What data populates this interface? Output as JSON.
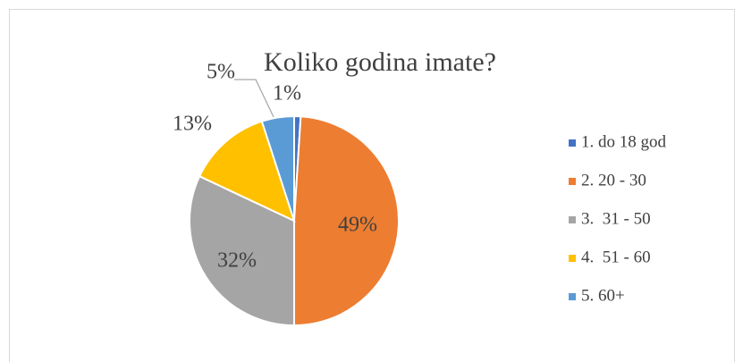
{
  "chart_data": {
    "type": "pie",
    "title": "Koliko godina imate?",
    "categories": [
      "1. do 18 god",
      "2. 20 - 30",
      "3.  31 - 50",
      "4.  51 - 60",
      "5. 60+"
    ],
    "values": [
      1,
      49,
      32,
      13,
      5
    ],
    "value_labels": [
      "1%",
      "49%",
      "32%",
      "13%",
      "5%"
    ],
    "colors": [
      "#4472c4",
      "#ed7d31",
      "#a5a5a5",
      "#ffc000",
      "#5b9bd5"
    ],
    "legend": "right"
  }
}
